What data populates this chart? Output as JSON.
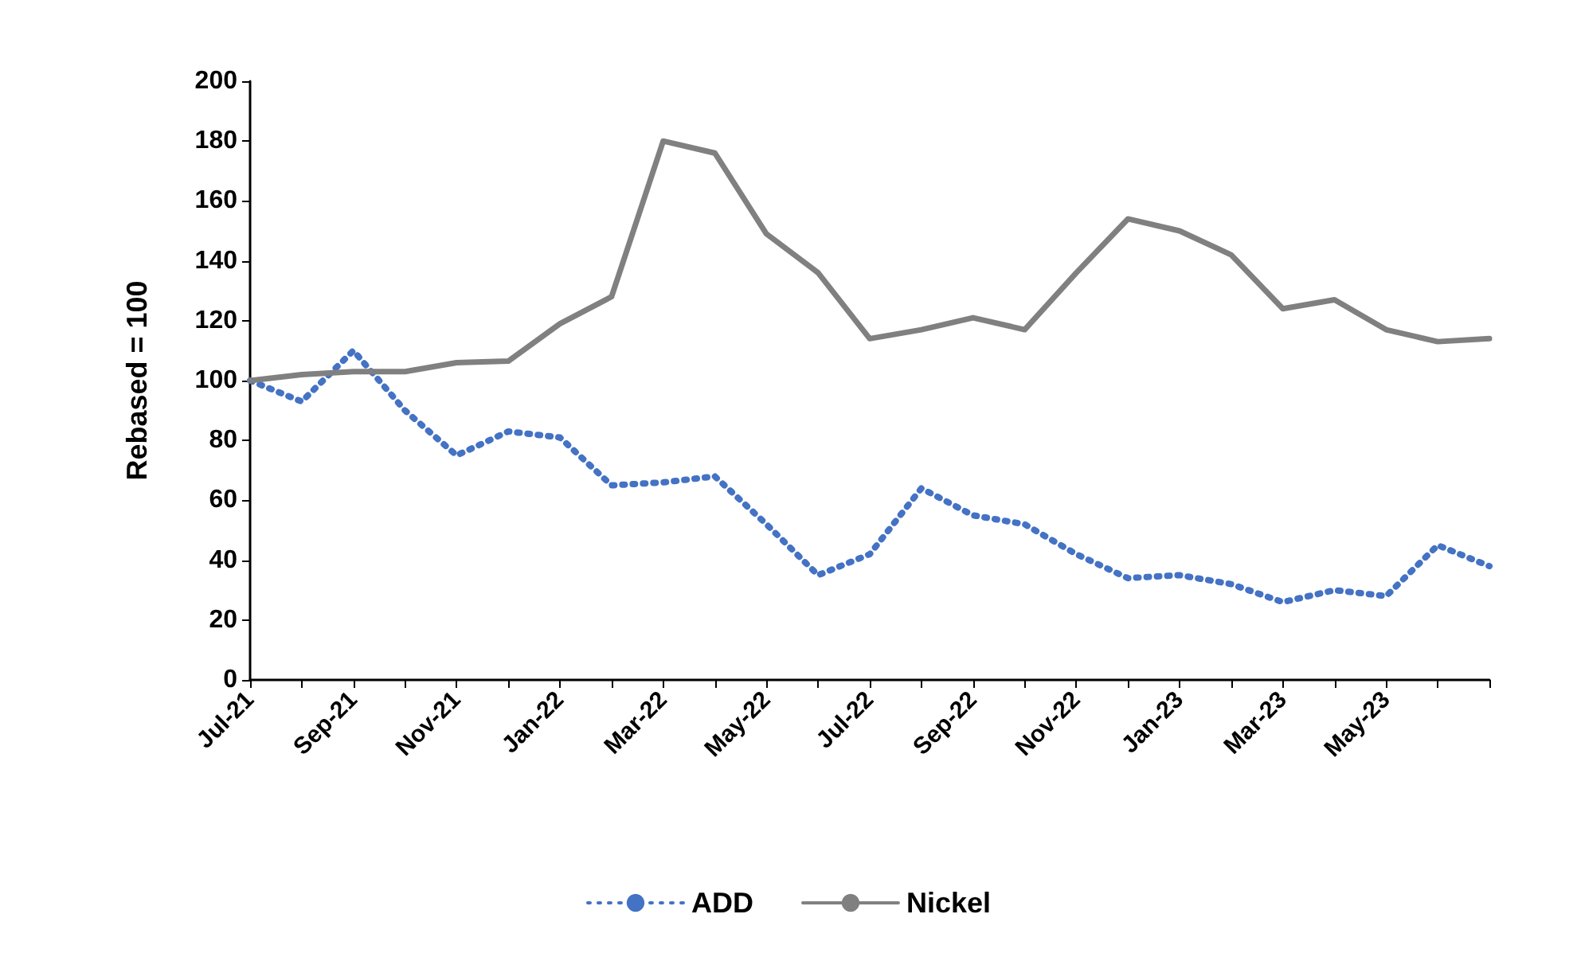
{
  "chart_data": {
    "type": "line",
    "ylabel": "Rebased = 100",
    "categories": [
      "Jul-21",
      null,
      "Sep-21",
      null,
      "Nov-21",
      null,
      "Jan-22",
      null,
      "Mar-22",
      null,
      "May-22",
      null,
      "Jul-22",
      null,
      "Sep-22",
      null,
      "Nov-22",
      null,
      "Jan-23",
      null,
      "Mar-23",
      null,
      "May-23",
      null,
      null
    ],
    "series": [
      {
        "name": "ADD",
        "color": "#4472c4",
        "line_style": "dotted",
        "values": [
          100,
          93,
          110,
          90,
          75,
          83,
          81,
          65,
          66,
          68,
          52,
          35,
          42,
          64,
          55,
          52,
          42,
          34,
          35,
          32,
          26,
          30,
          28,
          45,
          38
        ]
      },
      {
        "name": "Nickel",
        "color": "#808080",
        "line_style": "solid",
        "values": [
          100,
          102,
          103,
          103,
          106,
          106.5,
          119,
          128,
          180,
          176,
          149,
          136,
          114,
          117,
          121,
          117,
          136,
          154,
          150,
          142,
          124,
          127,
          117,
          113,
          114
        ]
      }
    ],
    "ylim": [
      0,
      200
    ],
    "yticks": [
      0,
      20,
      40,
      60,
      80,
      100,
      120,
      140,
      160,
      180,
      200
    ],
    "grid": false,
    "legend": "bottom",
    "marker": "none"
  }
}
